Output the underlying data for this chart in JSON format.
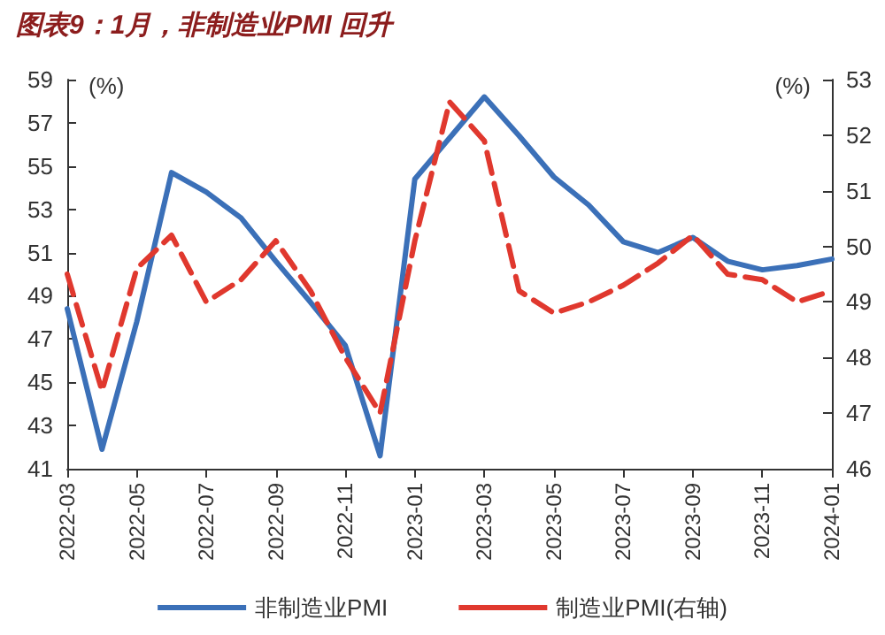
{
  "chart_data": {
    "type": "line",
    "title": "图表9：1月，非制造业PMI 回升",
    "ylabel": "(%)",
    "y2label": "(%)",
    "categories": [
      "2022-03",
      null,
      "2022-05",
      null,
      "2022-07",
      null,
      "2022-09",
      null,
      "2022-11",
      null,
      "2023-01",
      null,
      "2023-03",
      null,
      "2023-05",
      null,
      "2023-07",
      null,
      "2023-09",
      null,
      "2023-11",
      null,
      "2024-01"
    ],
    "series": [
      {
        "name": "非制造业PMI",
        "color": "#3b70b8",
        "line_style": "solid",
        "values": [
          48.4,
          41.9,
          47.8,
          54.7,
          53.8,
          52.6,
          50.6,
          48.7,
          46.7,
          41.6,
          54.4,
          56.3,
          58.2,
          56.4,
          54.5,
          53.2,
          51.5,
          51.0,
          51.7,
          50.6,
          50.2,
          50.4,
          50.7
        ]
      },
      {
        "name": "制造业PMI(右轴)",
        "color": "#e0382e",
        "line_style": "dashed",
        "axis": "y2",
        "values": [
          49.5,
          47.4,
          49.6,
          50.2,
          49.0,
          49.4,
          50.1,
          49.2,
          48.0,
          47.0,
          50.1,
          52.6,
          51.9,
          49.2,
          48.8,
          49.0,
          49.3,
          49.7,
          50.2,
          49.5,
          49.4,
          49.0,
          49.2
        ]
      }
    ],
    "ylim": [
      41,
      59
    ],
    "yticks": [
      41,
      43,
      45,
      47,
      49,
      51,
      53,
      55,
      57,
      59
    ],
    "y2lim": [
      46,
      53
    ],
    "y2ticks": [
      46,
      47,
      48,
      49,
      50,
      51,
      52,
      53
    ],
    "grid": false,
    "legend": "bottom",
    "marker": "none"
  }
}
